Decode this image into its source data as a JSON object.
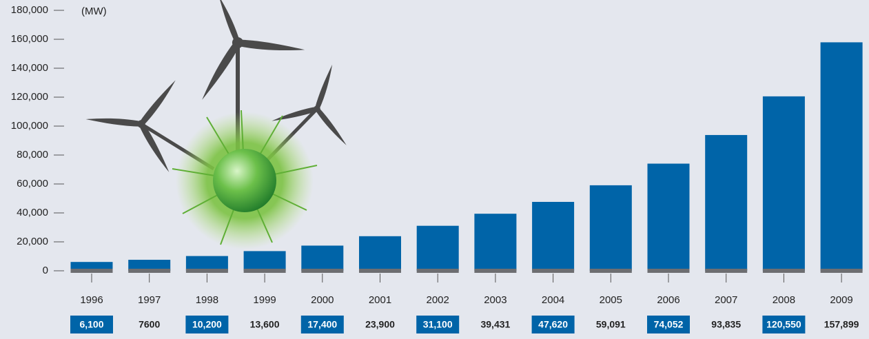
{
  "chart_data": {
    "type": "bar",
    "y_label": "(MW)",
    "categories": [
      "1996",
      "1997",
      "1998",
      "1999",
      "2000",
      "2001",
      "2002",
      "2003",
      "2004",
      "2005",
      "2006",
      "2007",
      "2008",
      "2009"
    ],
    "values": [
      6100,
      7600,
      10200,
      13600,
      17400,
      23900,
      31100,
      39431,
      47620,
      59091,
      74052,
      93835,
      120550,
      157899
    ],
    "value_labels": [
      "6,100",
      "7600",
      "10,200",
      "13,600",
      "17,400",
      "23,900",
      "31,100",
      "39,431",
      "47,620",
      "59,091",
      "74,052",
      "93,835",
      "120,550",
      "157,899"
    ],
    "color": "#0064a8",
    "ylim": [
      0,
      180000
    ],
    "yticks": [
      0,
      {
        "value": 20000,
        "label": "20,000"
      },
      {
        "value": 40000,
        "label": "40,000"
      },
      {
        "value": 60000,
        "label": "60,000"
      },
      {
        "value": 80000,
        "label": "80,000"
      },
      {
        "value": 100000,
        "label": "100,000"
      },
      {
        "value": 120000,
        "label": "120,000"
      },
      {
        "value": 140000,
        "label": "140,000"
      },
      {
        "value": 160000,
        "label": "160,000"
      },
      {
        "value": 180000,
        "label": "180,000"
      }
    ]
  }
}
